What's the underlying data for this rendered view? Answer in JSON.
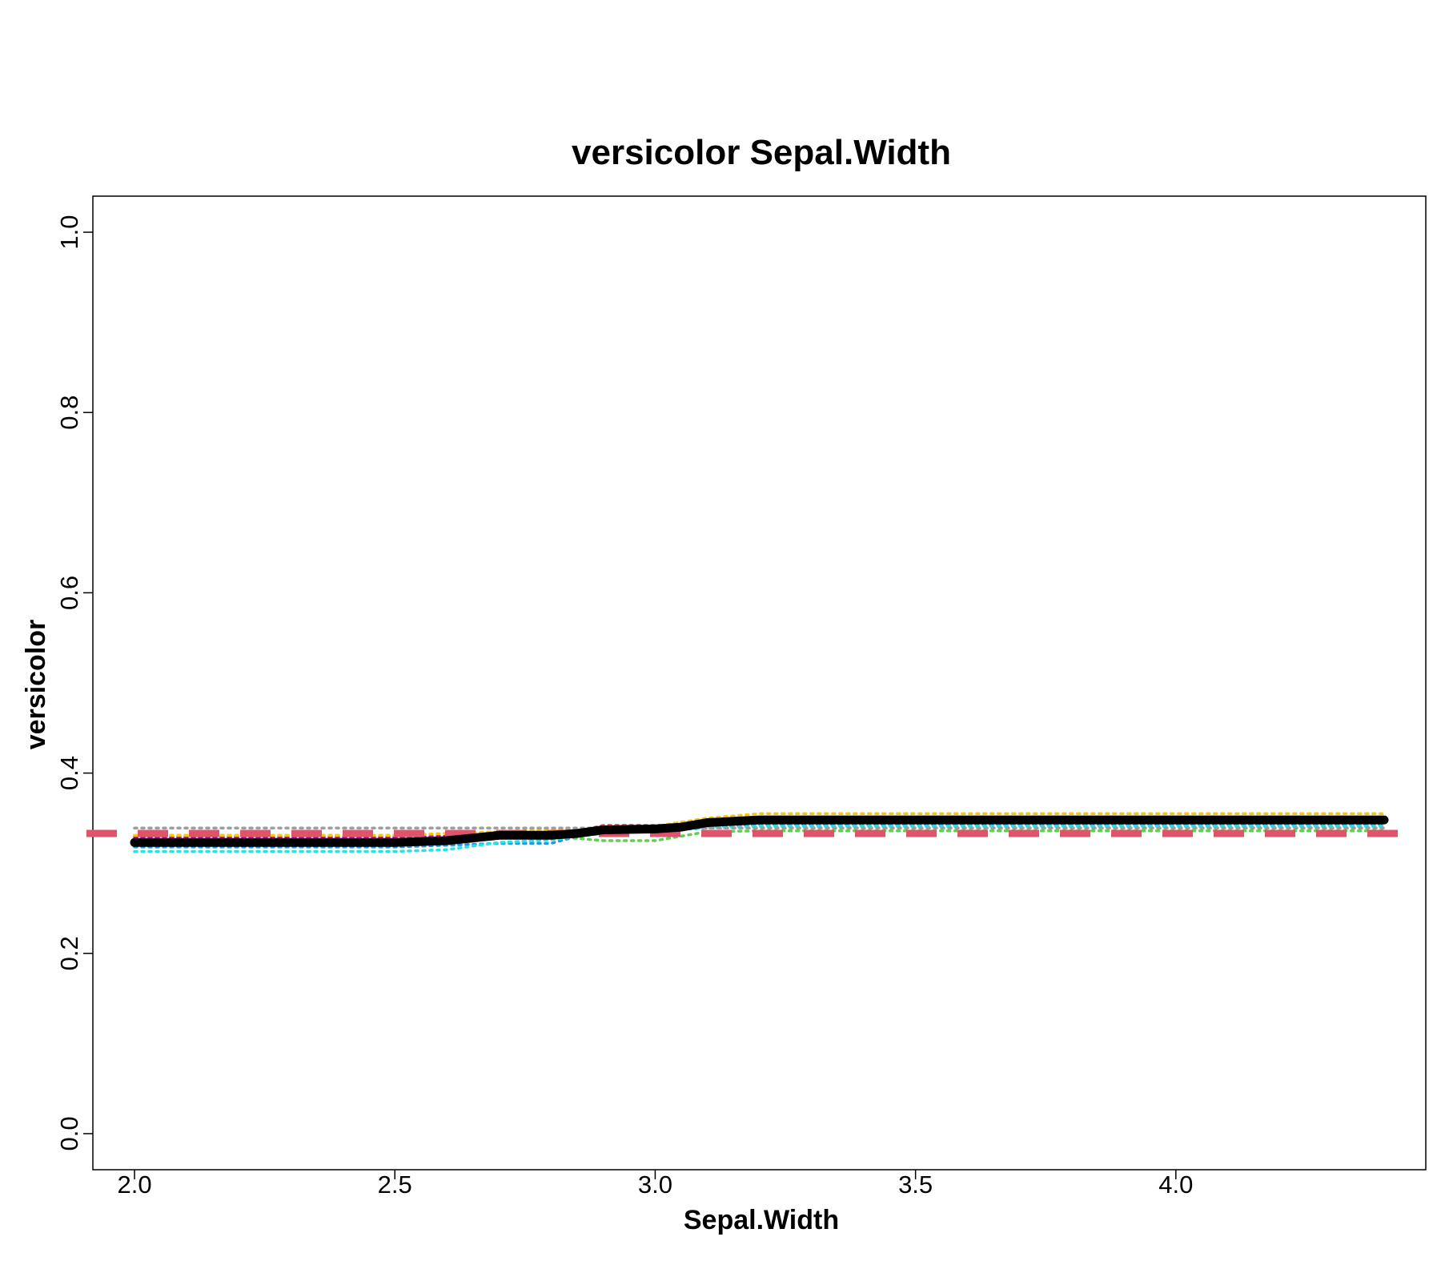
{
  "chart_data": {
    "type": "line",
    "title": "versicolor  Sepal.Width",
    "xlabel": "Sepal.Width",
    "ylabel": "versicolor",
    "xlim": [
      1.92,
      4.48
    ],
    "ylim": [
      -0.04,
      1.04
    ],
    "x_ticks": [
      2.0,
      2.5,
      3.0,
      3.5,
      4.0
    ],
    "x_tick_labels": [
      "2.0",
      "2.5",
      "3.0",
      "3.5",
      "4.0"
    ],
    "y_ticks": [
      0.0,
      0.2,
      0.4,
      0.6,
      0.8,
      1.0
    ],
    "y_tick_labels": [
      "0.0",
      "0.2",
      "0.4",
      "0.6",
      "0.8",
      "1.0"
    ],
    "grid": false,
    "reference_line": {
      "y": 0.333,
      "color": "#df536b",
      "style": "dashed"
    },
    "main_series": {
      "color": "#000000",
      "x": [
        2.0,
        2.5,
        2.6,
        2.65,
        2.7,
        2.8,
        2.85,
        2.9,
        3.0,
        3.05,
        3.1,
        3.2,
        3.3,
        4.4
      ],
      "values": [
        0.323,
        0.323,
        0.325,
        0.328,
        0.331,
        0.331,
        0.333,
        0.337,
        0.338,
        0.34,
        0.345,
        0.348,
        0.348,
        0.348
      ]
    },
    "series": [
      {
        "color": "#df536b",
        "x": [
          2.0,
          2.8,
          2.85,
          2.9,
          3.0,
          3.05,
          3.1,
          3.2,
          4.4
        ],
        "values": [
          0.328,
          0.328,
          0.335,
          0.342,
          0.342,
          0.342,
          0.346,
          0.348,
          0.348
        ]
      },
      {
        "color": "#61d04f",
        "x": [
          2.0,
          2.5,
          2.6,
          2.7,
          2.8,
          2.9,
          3.0,
          3.05,
          3.1,
          3.2,
          4.4
        ],
        "values": [
          0.324,
          0.324,
          0.326,
          0.329,
          0.33,
          0.325,
          0.325,
          0.33,
          0.335,
          0.336,
          0.336
        ]
      },
      {
        "color": "#2297e6",
        "x": [
          2.0,
          2.5,
          2.6,
          2.7,
          2.8,
          2.85,
          2.9,
          3.0,
          3.1,
          3.2,
          4.4
        ],
        "values": [
          0.318,
          0.318,
          0.32,
          0.322,
          0.322,
          0.33,
          0.336,
          0.336,
          0.34,
          0.343,
          0.343
        ]
      },
      {
        "color": "#28e2e5",
        "x": [
          2.0,
          2.5,
          2.6,
          2.7,
          2.8,
          2.9,
          3.0,
          3.1,
          3.2,
          4.4
        ],
        "values": [
          0.313,
          0.313,
          0.315,
          0.323,
          0.326,
          0.333,
          0.336,
          0.339,
          0.341,
          0.341
        ]
      },
      {
        "color": "#cd0bbc",
        "x": [
          2.0,
          2.5,
          2.6,
          2.7,
          2.8,
          2.9,
          3.0,
          3.1,
          3.2,
          4.4
        ],
        "values": [
          0.329,
          0.329,
          0.33,
          0.333,
          0.334,
          0.339,
          0.34,
          0.343,
          0.346,
          0.346
        ]
      },
      {
        "color": "#f5c710",
        "x": [
          2.0,
          2.5,
          2.6,
          2.7,
          2.8,
          2.9,
          3.0,
          3.1,
          3.2,
          4.4
        ],
        "values": [
          0.331,
          0.331,
          0.333,
          0.335,
          0.337,
          0.338,
          0.341,
          0.35,
          0.355,
          0.355
        ]
      },
      {
        "color": "#9e9e9e",
        "x": [
          2.0,
          2.5,
          2.6,
          2.7,
          2.8,
          2.9,
          3.0,
          3.1,
          3.2,
          4.4
        ],
        "values": [
          0.339,
          0.339,
          0.339,
          0.339,
          0.339,
          0.339,
          0.339,
          0.339,
          0.339,
          0.339
        ]
      }
    ]
  }
}
